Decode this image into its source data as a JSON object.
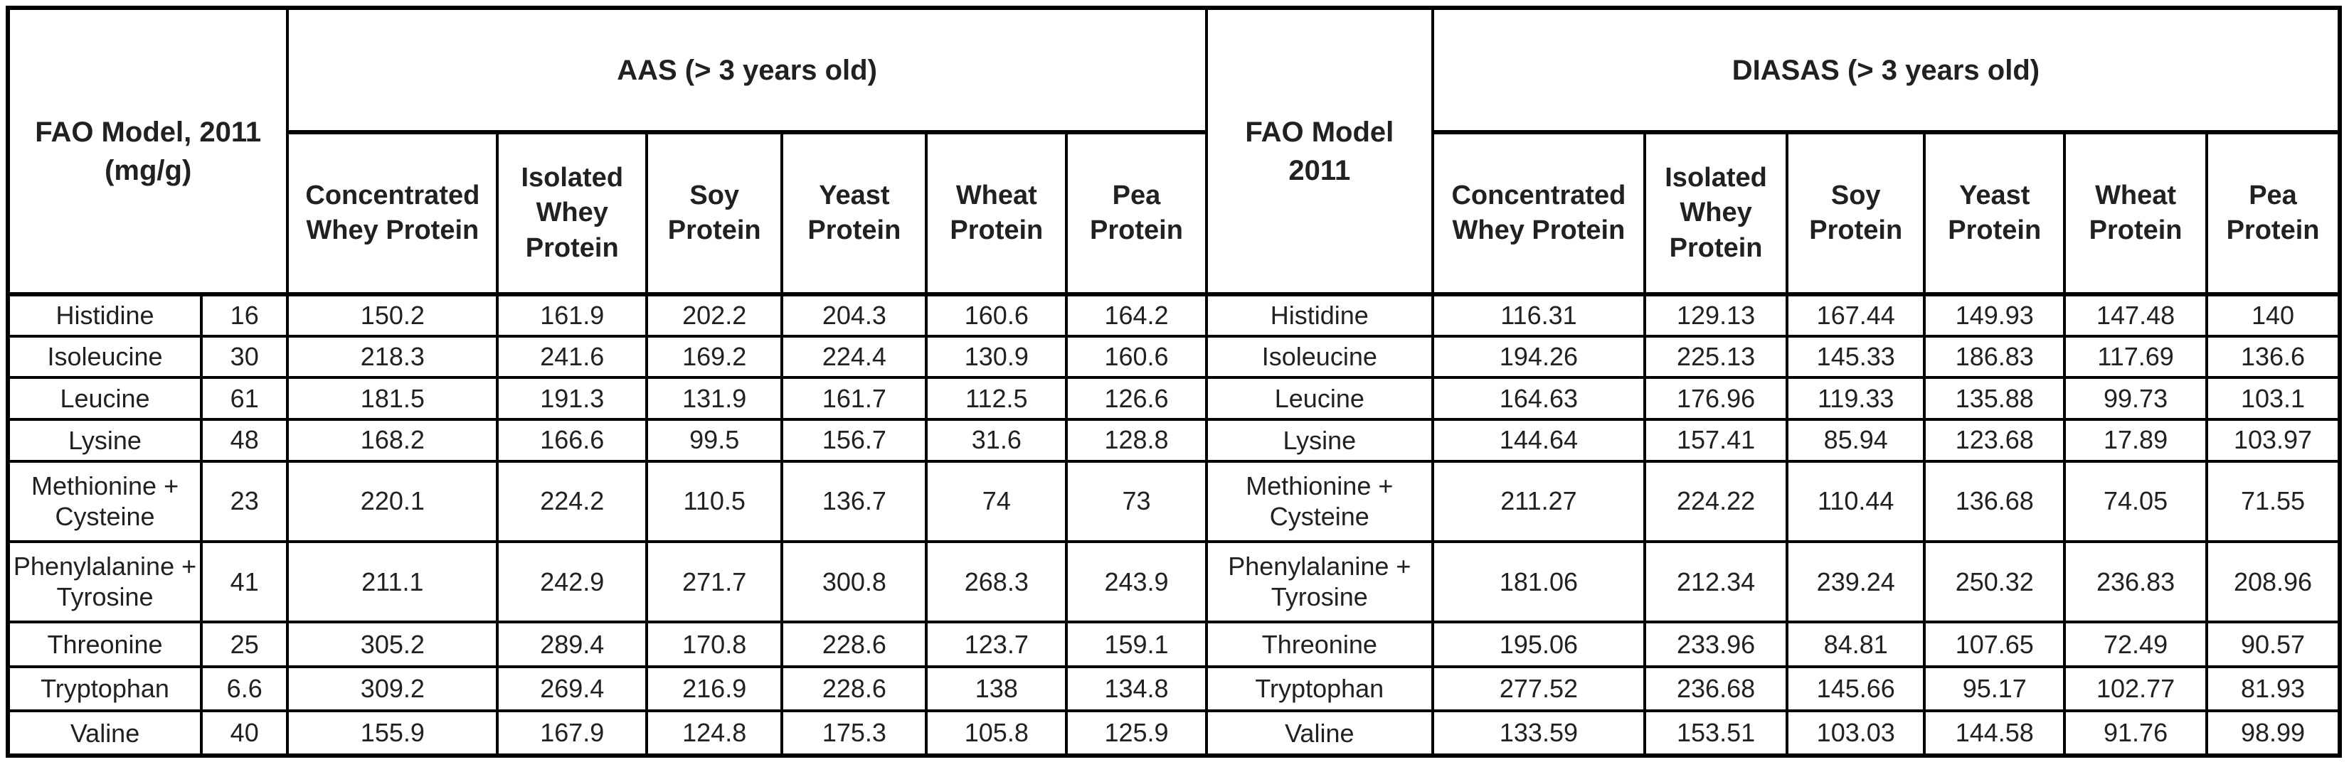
{
  "table": {
    "fao_left_header": "FAO Model, 2011 (mg/g)",
    "fao_right_header": "FAO Model 2011",
    "aas_header": "AAS (> 3 years old)",
    "diasas_header": "DIASAS (> 3 years old)",
    "protein_columns": [
      "Concentrated Whey Protein",
      "Isolated Whey Protein",
      "Soy Protein",
      "Yeast Protein",
      "Wheat Protein",
      "Pea Protein"
    ],
    "rows": [
      {
        "name": "Histidine",
        "fao": "16",
        "aas": [
          "150.2",
          "161.9",
          "202.2",
          "204.3",
          "160.6",
          "164.2"
        ],
        "diasas": [
          "116.31",
          "129.13",
          "167.44",
          "149.93",
          "147.48",
          "140"
        ]
      },
      {
        "name": "Isoleucine",
        "fao": "30",
        "aas": [
          "218.3",
          "241.6",
          "169.2",
          "224.4",
          "130.9",
          "160.6"
        ],
        "diasas": [
          "194.26",
          "225.13",
          "145.33",
          "186.83",
          "117.69",
          "136.6"
        ]
      },
      {
        "name": "Leucine",
        "fao": "61",
        "aas": [
          "181.5",
          "191.3",
          "131.9",
          "161.7",
          "112.5",
          "126.6"
        ],
        "diasas": [
          "164.63",
          "176.96",
          "119.33",
          "135.88",
          "99.73",
          "103.1"
        ]
      },
      {
        "name": "Lysine",
        "fao": "48",
        "aas": [
          "168.2",
          "166.6",
          "99.5",
          "156.7",
          "31.6",
          "128.8"
        ],
        "diasas": [
          "144.64",
          "157.41",
          "85.94",
          "123.68",
          "17.89",
          "103.97"
        ]
      },
      {
        "name": "Methionine + Cysteine",
        "fao": "23",
        "aas": [
          "220.1",
          "224.2",
          "110.5",
          "136.7",
          "74",
          "73"
        ],
        "diasas": [
          "211.27",
          "224.22",
          "110.44",
          "136.68",
          "74.05",
          "71.55"
        ]
      },
      {
        "name": "Phenylalanine + Tyrosine",
        "fao": "41",
        "aas": [
          "211.1",
          "242.9",
          "271.7",
          "300.8",
          "268.3",
          "243.9"
        ],
        "diasas": [
          "181.06",
          "212.34",
          "239.24",
          "250.32",
          "236.83",
          "208.96"
        ]
      },
      {
        "name": "Threonine",
        "fao": "25",
        "aas": [
          "305.2",
          "289.4",
          "170.8",
          "228.6",
          "123.7",
          "159.1"
        ],
        "diasas": [
          "195.06",
          "233.96",
          "84.81",
          "107.65",
          "72.49",
          "90.57"
        ]
      },
      {
        "name": "Tryptophan",
        "fao": "6.6",
        "aas": [
          "309.2",
          "269.4",
          "216.9",
          "228.6",
          "138",
          "134.8"
        ],
        "diasas": [
          "277.52",
          "236.68",
          "145.66",
          "95.17",
          "102.77",
          "81.93"
        ]
      },
      {
        "name": "Valine",
        "fao": "40",
        "aas": [
          "155.9",
          "167.9",
          "124.8",
          "175.3",
          "105.8",
          "125.9"
        ],
        "diasas": [
          "133.59",
          "153.51",
          "103.03",
          "144.58",
          "91.76",
          "98.99"
        ]
      }
    ]
  },
  "colors": {
    "border": "#000000",
    "text": "#212121",
    "background": "#ffffff"
  }
}
